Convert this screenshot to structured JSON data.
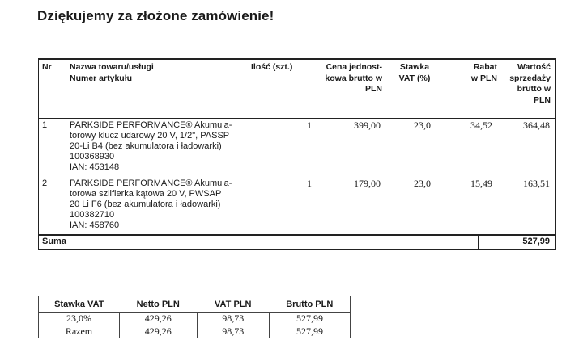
{
  "title": "Dziękujemy za złożone zamówienie!",
  "order_table": {
    "headers": {
      "nr": "Nr",
      "name_line1": "Nazwa towaru/usługi",
      "name_line2": "Numer artykułu",
      "qty": "Ilość (szt.)",
      "price_line1": "Cena jednost-",
      "price_line2": "kowa brutto w",
      "price_line3": "PLN",
      "vat_line1": "Stawka",
      "vat_line2": "VAT (%)",
      "discount_line1": "Rabat",
      "discount_line2": "w PLN",
      "value_line1": "Wartość",
      "value_line2": "sprzedaży",
      "value_line3": "brutto w",
      "value_line4": "PLN"
    },
    "items": [
      {
        "nr": "1",
        "desc_lines": [
          "PARKSIDE PERFORMANCE® Akumula-",
          "torowy klucz udarowy 20 V, 1/2\", PASSP",
          "20-Li B4 (bez akumulatora i ładowarki)"
        ],
        "article": "100368930",
        "ian": "IAN: 453148",
        "qty": "1",
        "price": "399,00",
        "vat": "23,0",
        "discount": "34,52",
        "value": "364,48"
      },
      {
        "nr": "2",
        "desc_lines": [
          "PARKSIDE PERFORMANCE® Akumula-",
          "torowa szlifierka kątowa 20 V, PWSAP",
          "20 Li F6 (bez akumulatora i ładowarki)"
        ],
        "article": "100382710",
        "ian": "IAN: 458760",
        "qty": "1",
        "price": "179,00",
        "vat": "23,0",
        "discount": "15,49",
        "value": "163,51"
      }
    ],
    "sum_label": "Suma",
    "sum_value": "527,99"
  },
  "vat_table": {
    "headers": [
      "Stawka VAT",
      "Netto PLN",
      "VAT PLN",
      "Brutto PLN"
    ],
    "rows": [
      [
        "23,0%",
        "429,26",
        "98,73",
        "527,99"
      ],
      [
        "Razem",
        "429,26",
        "98,73",
        "527,99"
      ]
    ]
  }
}
